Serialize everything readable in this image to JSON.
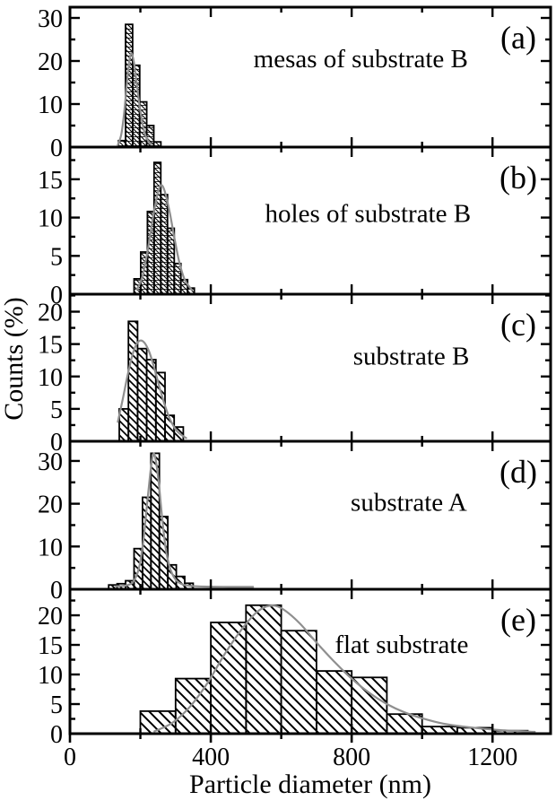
{
  "figure": {
    "background": "#ffffff",
    "ink_color": "#000000",
    "fit_curve_color": "#8f8f8f"
  },
  "chart_data": {
    "type": "bar",
    "subtype": "stacked-panel-histograms",
    "xlabel": "Particle diameter (nm)",
    "ylabel": "Counts (%)",
    "xlim": [
      0,
      1365
    ],
    "xticks_major": [
      0,
      400,
      800,
      1200
    ],
    "xticks_minor": [
      200,
      600,
      1000
    ],
    "grid": "off",
    "legend": "none",
    "panels": [
      {
        "letter": "(a)",
        "annotation": "mesas of substrate B",
        "annotation_pos": [
          0.605,
          0.43
        ],
        "ylim": [
          0,
          32.5
        ],
        "yticks": [
          0,
          10,
          20,
          30
        ],
        "yminor_step": 5,
        "bins_start_nm": 138,
        "bin_width_nm": 20,
        "heights_pct": [
          1.5,
          28.5,
          19,
          10.5,
          5,
          1.2
        ],
        "hatch": "fine",
        "fit_curve": [
          [
            136,
            0.5
          ],
          [
            146,
            3
          ],
          [
            154,
            8
          ],
          [
            162,
            15
          ],
          [
            169,
            20.3
          ],
          [
            175,
            21.8
          ],
          [
            182,
            19.5
          ],
          [
            190,
            14.5
          ],
          [
            198,
            9.5
          ],
          [
            207,
            5
          ],
          [
            217,
            2.2
          ],
          [
            230,
            0.6
          ]
        ]
      },
      {
        "letter": "(b)",
        "annotation": "holes of substrate B",
        "annotation_pos": [
          0.62,
          0.51
        ],
        "ylim": [
          0,
          19.2
        ],
        "yticks": [
          0,
          5,
          10,
          15
        ],
        "yminor_step": 2.5,
        "bins_start_nm": 182,
        "bin_width_nm": 19,
        "heights_pct": [
          2,
          5.5,
          10.8,
          17.2,
          13,
          8.6,
          4,
          1.9,
          0.8
        ],
        "hatch": "fine",
        "fit_curve": [
          [
            190,
            0.6
          ],
          [
            205,
            2.2
          ],
          [
            220,
            5.5
          ],
          [
            235,
            9.8
          ],
          [
            248,
            13
          ],
          [
            258,
            14.2
          ],
          [
            268,
            13.6
          ],
          [
            282,
            11
          ],
          [
            296,
            7.5
          ],
          [
            310,
            4.3
          ],
          [
            325,
            2
          ],
          [
            345,
            0.6
          ]
        ]
      },
      {
        "letter": "(c)",
        "annotation": "substrate B",
        "annotation_pos": [
          0.71,
          0.48
        ],
        "ylim": [
          0,
          22.7
        ],
        "yticks": [
          0,
          5,
          10,
          15,
          20
        ],
        "yminor_step": 2.5,
        "bins_start_nm": 140,
        "bin_width_nm": 26,
        "heights_pct": [
          5,
          18.5,
          14.3,
          12.6,
          10.6,
          4,
          2.2
        ],
        "hatch": "mid",
        "fit_curve": [
          [
            136,
            3
          ],
          [
            150,
            6.5
          ],
          [
            165,
            10.5
          ],
          [
            180,
            13.8
          ],
          [
            195,
            15.4
          ],
          [
            210,
            15.3
          ],
          [
            225,
            13.8
          ],
          [
            240,
            11.2
          ],
          [
            255,
            8.2
          ],
          [
            270,
            5.5
          ],
          [
            285,
            3.3
          ],
          [
            305,
            1.5
          ],
          [
            330,
            0.5
          ]
        ]
      },
      {
        "letter": "(d)",
        "annotation": "substrate A",
        "annotation_pos": [
          0.705,
          0.47
        ],
        "ylim": [
          0,
          34.6
        ],
        "yticks": [
          0,
          10,
          20,
          30
        ],
        "yminor_step": 5,
        "bins_start_nm": 110,
        "bin_width_nm": 24,
        "heights_pct": [
          1,
          1.3,
          2,
          9.5,
          21.5,
          31.8,
          17,
          5.7,
          3,
          1.4
        ],
        "hatch": "mid",
        "fit_curve": [
          [
            130,
            0.7
          ],
          [
            160,
            0.9
          ],
          [
            180,
            1.8
          ],
          [
            196,
            5
          ],
          [
            208,
            11
          ],
          [
            218,
            19
          ],
          [
            228,
            27
          ],
          [
            236,
            31.5
          ],
          [
            243,
            30.5
          ],
          [
            252,
            25
          ],
          [
            262,
            16.5
          ],
          [
            272,
            9.5
          ],
          [
            284,
            5
          ],
          [
            298,
            2.5
          ],
          [
            315,
            1.3
          ],
          [
            340,
            0.8
          ],
          [
            390,
            0.6
          ],
          [
            460,
            0.55
          ],
          [
            520,
            0.55
          ]
        ]
      },
      {
        "letter": "(e)",
        "annotation": "flat substrate",
        "annotation_pos": [
          0.69,
          0.44
        ],
        "ylim": [
          0,
          24.4
        ],
        "yticks": [
          0,
          5,
          10,
          15,
          20
        ],
        "yminor_step": 2.5,
        "bins_start_nm": 200,
        "bin_width_nm": 100,
        "heights_pct": [
          3.8,
          9.3,
          18.8,
          21.7,
          17.4,
          10.6,
          9.5,
          3.3,
          1.2,
          1.0,
          0.5
        ],
        "hatch": "wide",
        "fit_curve": [
          [
            240,
            0.4
          ],
          [
            290,
            1.8
          ],
          [
            340,
            4.5
          ],
          [
            390,
            8.5
          ],
          [
            440,
            13.5
          ],
          [
            490,
            17.8
          ],
          [
            530,
            20.5
          ],
          [
            565,
            21.6
          ],
          [
            600,
            21.2
          ],
          [
            650,
            18.8
          ],
          [
            700,
            15.4
          ],
          [
            750,
            12.2
          ],
          [
            800,
            9.3
          ],
          [
            850,
            6.9
          ],
          [
            900,
            5
          ],
          [
            950,
            3.6
          ],
          [
            1000,
            2.6
          ],
          [
            1060,
            1.7
          ],
          [
            1130,
            1.1
          ],
          [
            1220,
            0.6
          ],
          [
            1320,
            0.3
          ]
        ]
      }
    ]
  }
}
